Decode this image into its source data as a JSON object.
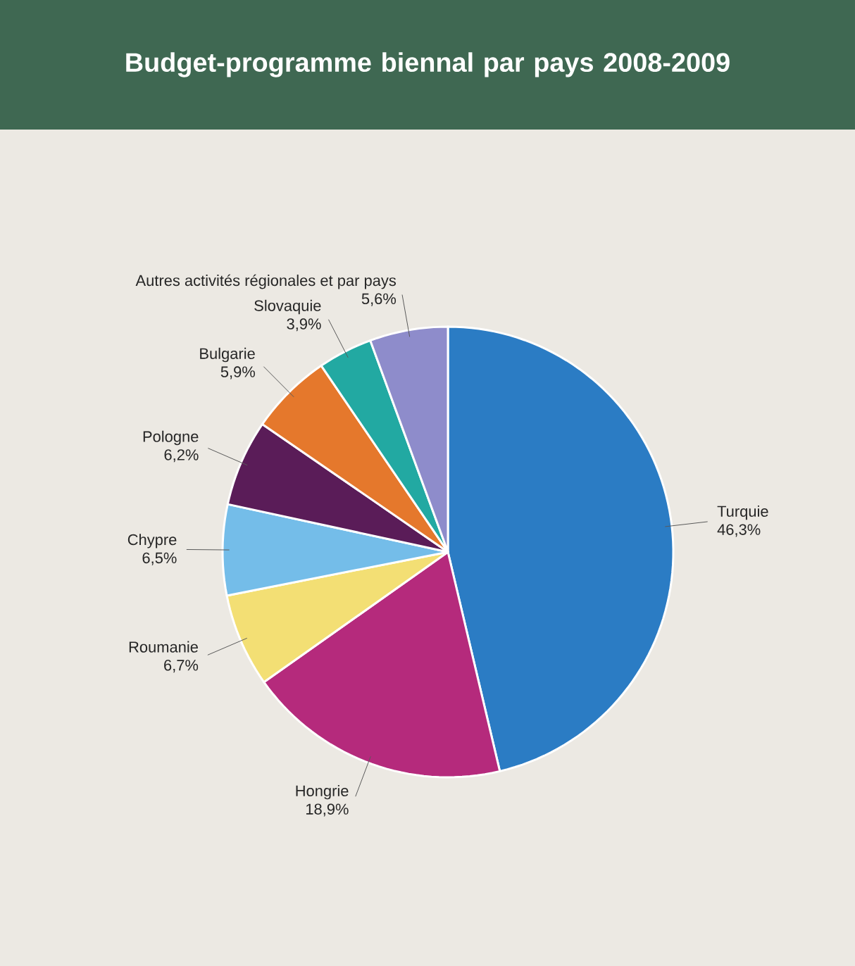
{
  "chart_data": {
    "type": "pie",
    "title": "Budget-programme biennal par pays 2008-2009",
    "categories": [
      "Turquie",
      "Hongrie",
      "Roumanie",
      "Chypre",
      "Pologne",
      "Bulgarie",
      "Slovaquie",
      "Autres activités régionales et par pays"
    ],
    "values": [
      46.3,
      18.9,
      6.7,
      6.5,
      6.2,
      5.9,
      3.9,
      5.6
    ],
    "value_labels": [
      "46,3%",
      "18,9%",
      "6,7%",
      "6,5%",
      "6,2%",
      "5,9%",
      "3,9%",
      "5,6%"
    ],
    "colors": [
      "#2b7cc4",
      "#b52a7c",
      "#f3df74",
      "#74bde9",
      "#5a1c58",
      "#e5782c",
      "#22a9a2",
      "#8e8ccb"
    ]
  }
}
